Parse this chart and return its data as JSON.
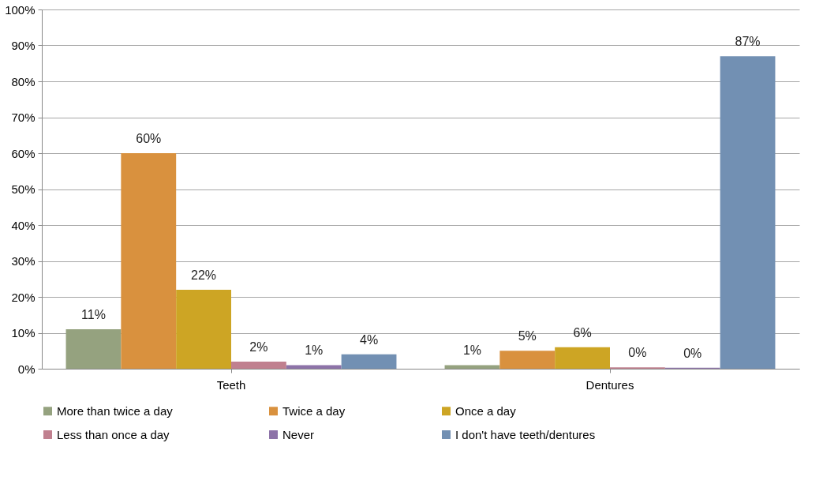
{
  "chart_data": {
    "type": "bar",
    "categories": [
      "Teeth",
      "Dentures"
    ],
    "series": [
      {
        "name": "More than twice a day",
        "color": "#95a27f",
        "values": [
          11,
          1
        ],
        "value_labels": [
          "11%",
          "1%"
        ]
      },
      {
        "name": "Twice a day",
        "color": "#d9913e",
        "values": [
          60,
          5
        ],
        "value_labels": [
          "60%",
          "5%"
        ]
      },
      {
        "name": "Once a day",
        "color": "#cda524",
        "values": [
          22,
          6
        ],
        "value_labels": [
          "22%",
          "6%"
        ]
      },
      {
        "name": "Less than once a day",
        "color": "#c0808f",
        "values": [
          2,
          0.4
        ],
        "value_labels": [
          "2%",
          "0%"
        ]
      },
      {
        "name": "Never",
        "color": "#8d73a8",
        "values": [
          1,
          0.3
        ],
        "value_labels": [
          "1%",
          "0%"
        ]
      },
      {
        "name": "I don't have teeth/dentures",
        "color": "#7290b3",
        "values": [
          4,
          87
        ],
        "value_labels": [
          "4%",
          "87%"
        ]
      }
    ],
    "ylim": [
      0,
      100
    ],
    "yticks": [
      {
        "value": 0,
        "label": "0%"
      },
      {
        "value": 10,
        "label": "10%"
      },
      {
        "value": 20,
        "label": "20%"
      },
      {
        "value": 30,
        "label": "30%"
      },
      {
        "value": 40,
        "label": "40%"
      },
      {
        "value": 50,
        "label": "50%"
      },
      {
        "value": 60,
        "label": "60%"
      },
      {
        "value": 70,
        "label": "70%"
      },
      {
        "value": 80,
        "label": "80%"
      },
      {
        "value": 90,
        "label": "90%"
      },
      {
        "value": 100,
        "label": "100%"
      }
    ],
    "grid": "y",
    "legend": "bottom"
  }
}
